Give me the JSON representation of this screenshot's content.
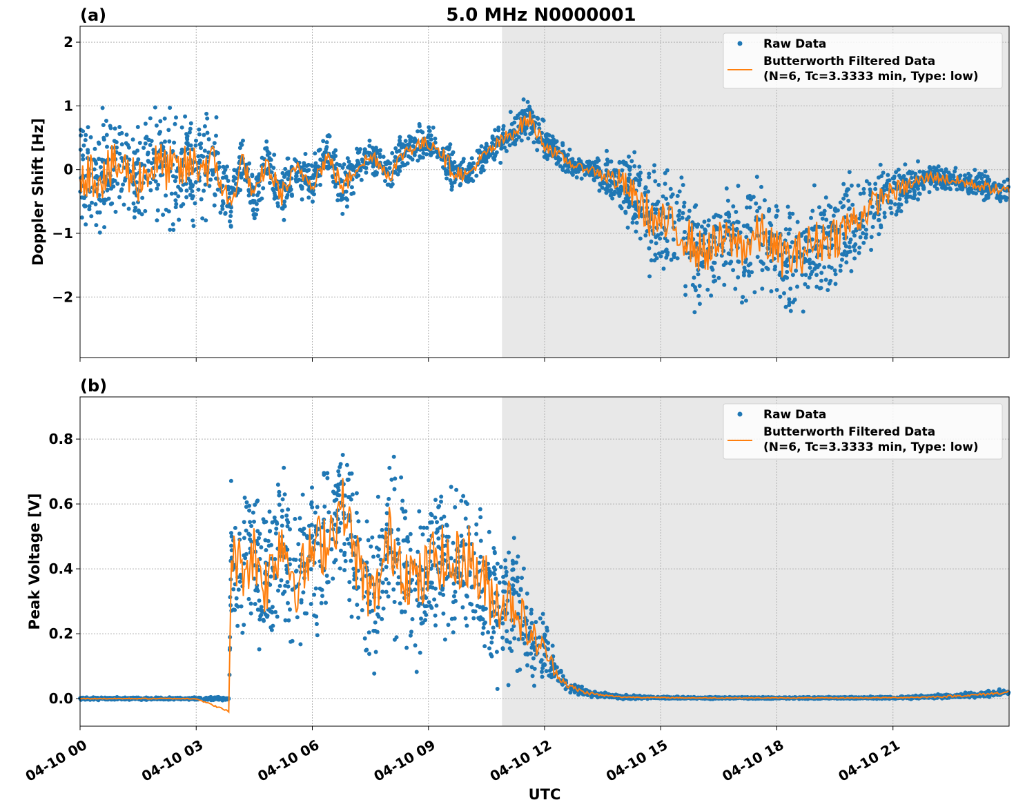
{
  "chart_data": [
    {
      "type": "scatter",
      "panel_label": "(a)",
      "title": "5.0 MHz N0000001",
      "xlabel": "",
      "ylabel": "Doppler Shift [Hz]",
      "xlim_hours": [
        0,
        24
      ],
      "ylim": [
        -2.95,
        2.25
      ],
      "yticks": [
        -2,
        -1,
        0,
        1,
        2
      ],
      "ytick_labels": [
        "−2",
        "−1",
        "0",
        "1",
        "2"
      ],
      "grid": true,
      "legend_position": "upper right",
      "shaded_region_hours": [
        10.9,
        24
      ],
      "series": [
        {
          "name": "Raw Data",
          "kind": "points",
          "color": "#1f77b4",
          "x_hours": [
            0,
            0.5,
            1,
            1.5,
            2,
            2.5,
            3,
            3.5,
            3.9,
            4.2,
            4.5,
            4.8,
            5.2,
            5.6,
            6,
            6.4,
            6.8,
            7.2,
            7.6,
            8,
            8.4,
            8.8,
            9.2,
            9.6,
            10,
            10.4,
            10.8,
            11.2,
            11.6,
            12,
            12.4,
            12.8,
            13.2,
            13.6,
            14,
            14.4,
            14.8,
            15.2,
            15.6,
            16,
            16.4,
            16.8,
            17.2,
            17.6,
            18,
            18.4,
            18.8,
            19.2,
            19.6,
            20,
            20.4,
            20.8,
            21.2,
            21.6,
            22,
            22.4,
            22.8,
            23.2,
            23.6,
            24
          ],
          "y_center": [
            0,
            -0.1,
            0.05,
            -0.15,
            0.1,
            -0.05,
            0.1,
            0.05,
            -0.6,
            0.2,
            -0.5,
            0.1,
            -0.4,
            0,
            -0.2,
            0.2,
            -0.3,
            0.1,
            0.2,
            -0.1,
            0.3,
            0.4,
            0.4,
            0,
            -0.1,
            0.2,
            0.4,
            0.6,
            0.8,
            0.4,
            0.2,
            0.05,
            0,
            -0.1,
            -0.2,
            -0.5,
            -0.8,
            -0.9,
            -1.0,
            -1.3,
            -1.2,
            -1.1,
            -1.2,
            -1.0,
            -1.3,
            -1.4,
            -1.2,
            -1.1,
            -1.0,
            -0.8,
            -0.6,
            -0.4,
            -0.3,
            -0.2,
            -0.1,
            -0.15,
            -0.2,
            -0.25,
            -0.3,
            -0.35
          ],
          "y_spread": [
            1.3,
            1.3,
            1.3,
            1.3,
            1.2,
            1.3,
            1.2,
            1.2,
            0.5,
            0.5,
            0.6,
            0.6,
            0.6,
            0.5,
            0.5,
            0.5,
            0.6,
            0.4,
            0.4,
            0.4,
            0.4,
            0.4,
            0.4,
            0.5,
            0.3,
            0.3,
            0.4,
            0.4,
            0.5,
            0.4,
            0.3,
            0.2,
            0.2,
            0.5,
            0.7,
            1.0,
            1.1,
            1.2,
            1.2,
            1.2,
            1.2,
            1.2,
            1.2,
            1.2,
            1.2,
            1.2,
            1.2,
            1.2,
            1.2,
            1.0,
            0.8,
            0.6,
            0.5,
            0.4,
            0.3,
            0.3,
            0.3,
            0.3,
            0.3,
            0.3
          ]
        },
        {
          "name": "Butterworth Filtered Data\n(N=6, Tc=3.3333 min, Type: low)",
          "kind": "line",
          "color": "#ff7f0e",
          "x_hours": [
            0,
            0.5,
            1,
            1.5,
            2,
            2.5,
            3,
            3.5,
            3.9,
            4.2,
            4.5,
            4.8,
            5.2,
            5.6,
            6,
            6.4,
            6.8,
            7.2,
            7.6,
            8,
            8.4,
            8.8,
            9.2,
            9.6,
            10,
            10.4,
            10.8,
            11.2,
            11.6,
            12,
            12.4,
            12.8,
            13.2,
            13.6,
            14,
            14.4,
            14.8,
            15.2,
            15.6,
            16,
            16.4,
            16.8,
            17.2,
            17.6,
            18,
            18.4,
            18.8,
            19.2,
            19.6,
            20,
            20.4,
            20.8,
            21.2,
            21.6,
            22,
            22.4,
            22.8,
            23.2,
            23.6,
            24
          ],
          "y": [
            0,
            -0.1,
            0.05,
            -0.15,
            0.1,
            -0.05,
            0.1,
            0.05,
            -0.6,
            0.2,
            -0.5,
            0.1,
            -0.4,
            0,
            -0.2,
            0.2,
            -0.3,
            0.1,
            0.2,
            -0.1,
            0.3,
            0.4,
            0.4,
            0,
            -0.1,
            0.2,
            0.4,
            0.6,
            0.8,
            0.4,
            0.2,
            0.05,
            0,
            -0.1,
            -0.2,
            -0.5,
            -0.8,
            -0.9,
            -1.0,
            -1.3,
            -1.2,
            -1.1,
            -1.2,
            -1.0,
            -1.3,
            -1.4,
            -1.2,
            -1.1,
            -1.0,
            -0.8,
            -0.6,
            -0.4,
            -0.3,
            -0.2,
            -0.1,
            -0.15,
            -0.2,
            -0.25,
            -0.3,
            -0.35
          ]
        }
      ]
    },
    {
      "type": "scatter",
      "panel_label": "(b)",
      "title": "",
      "xlabel": "UTC",
      "ylabel": "Peak Voltage [V]",
      "xlim_hours": [
        0,
        24
      ],
      "ylim": [
        -0.085,
        0.93
      ],
      "yticks": [
        0,
        0.2,
        0.4,
        0.6,
        0.8
      ],
      "ytick_labels": [
        "0.0",
        "0.2",
        "0.4",
        "0.6",
        "0.8"
      ],
      "xtick_hours": [
        0,
        3,
        6,
        9,
        12,
        15,
        18,
        21
      ],
      "xtick_labels": [
        "04-10 00",
        "04-10 03",
        "04-10 06",
        "04-10 09",
        "04-10 12",
        "04-10 15",
        "04-10 18",
        "04-10 21"
      ],
      "grid": true,
      "legend_position": "upper right",
      "shaded_region_hours": [
        10.9,
        24
      ],
      "series": [
        {
          "name": "Raw Data",
          "kind": "points",
          "color": "#1f77b4",
          "x_hours": [
            0,
            1,
            2,
            3,
            3.85,
            3.9,
            4.2,
            4.5,
            4.8,
            5.2,
            5.6,
            6,
            6.4,
            6.8,
            7.2,
            7.6,
            8,
            8.4,
            8.8,
            9.2,
            9.6,
            10,
            10.4,
            10.8,
            11.2,
            11.6,
            12,
            12.3,
            12.6,
            13,
            13.5,
            14,
            15,
            16,
            17,
            18,
            19,
            20,
            21,
            22,
            23,
            24
          ],
          "y_center": [
            0,
            0,
            0,
            0,
            0,
            0.45,
            0.4,
            0.45,
            0.35,
            0.5,
            0.35,
            0.45,
            0.5,
            0.6,
            0.4,
            0.3,
            0.5,
            0.4,
            0.35,
            0.45,
            0.4,
            0.45,
            0.35,
            0.3,
            0.3,
            0.2,
            0.15,
            0.08,
            0.04,
            0.02,
            0.01,
            0.005,
            0.003,
            0.002,
            0.002,
            0.002,
            0.002,
            0.002,
            0.003,
            0.005,
            0.01,
            0.02
          ],
          "y_spread": [
            0.005,
            0.005,
            0.005,
            0.005,
            0.01,
            0.3,
            0.3,
            0.35,
            0.35,
            0.35,
            0.3,
            0.35,
            0.35,
            0.3,
            0.35,
            0.3,
            0.35,
            0.35,
            0.35,
            0.35,
            0.35,
            0.35,
            0.4,
            0.3,
            0.3,
            0.2,
            0.12,
            0.06,
            0.03,
            0.02,
            0.01,
            0.008,
            0.005,
            0.004,
            0.004,
            0.004,
            0.004,
            0.004,
            0.005,
            0.008,
            0.012,
            0.015
          ]
        },
        {
          "name": "Butterworth Filtered Data\n(N=6, Tc=3.3333 min, Type: low)",
          "kind": "line",
          "color": "#ff7f0e",
          "x_hours": [
            0,
            1,
            2,
            3,
            3.85,
            3.9,
            4.2,
            4.5,
            4.8,
            5.2,
            5.6,
            6,
            6.4,
            6.8,
            7.2,
            7.6,
            8,
            8.4,
            8.8,
            9.2,
            9.6,
            10,
            10.4,
            10.8,
            11.2,
            11.6,
            12,
            12.3,
            12.6,
            13,
            13.5,
            14,
            15,
            16,
            17,
            18,
            19,
            20,
            21,
            22,
            23,
            24
          ],
          "y": [
            0,
            0,
            0,
            0,
            -0.04,
            0.45,
            0.4,
            0.45,
            0.35,
            0.5,
            0.35,
            0.45,
            0.5,
            0.6,
            0.4,
            0.3,
            0.5,
            0.4,
            0.35,
            0.45,
            0.4,
            0.45,
            0.35,
            0.3,
            0.3,
            0.2,
            0.15,
            0.08,
            0.04,
            0.02,
            0.01,
            0.005,
            0.003,
            0.002,
            0.002,
            0.002,
            0.002,
            0.002,
            0.003,
            0.005,
            0.01,
            0.02
          ]
        }
      ]
    }
  ]
}
